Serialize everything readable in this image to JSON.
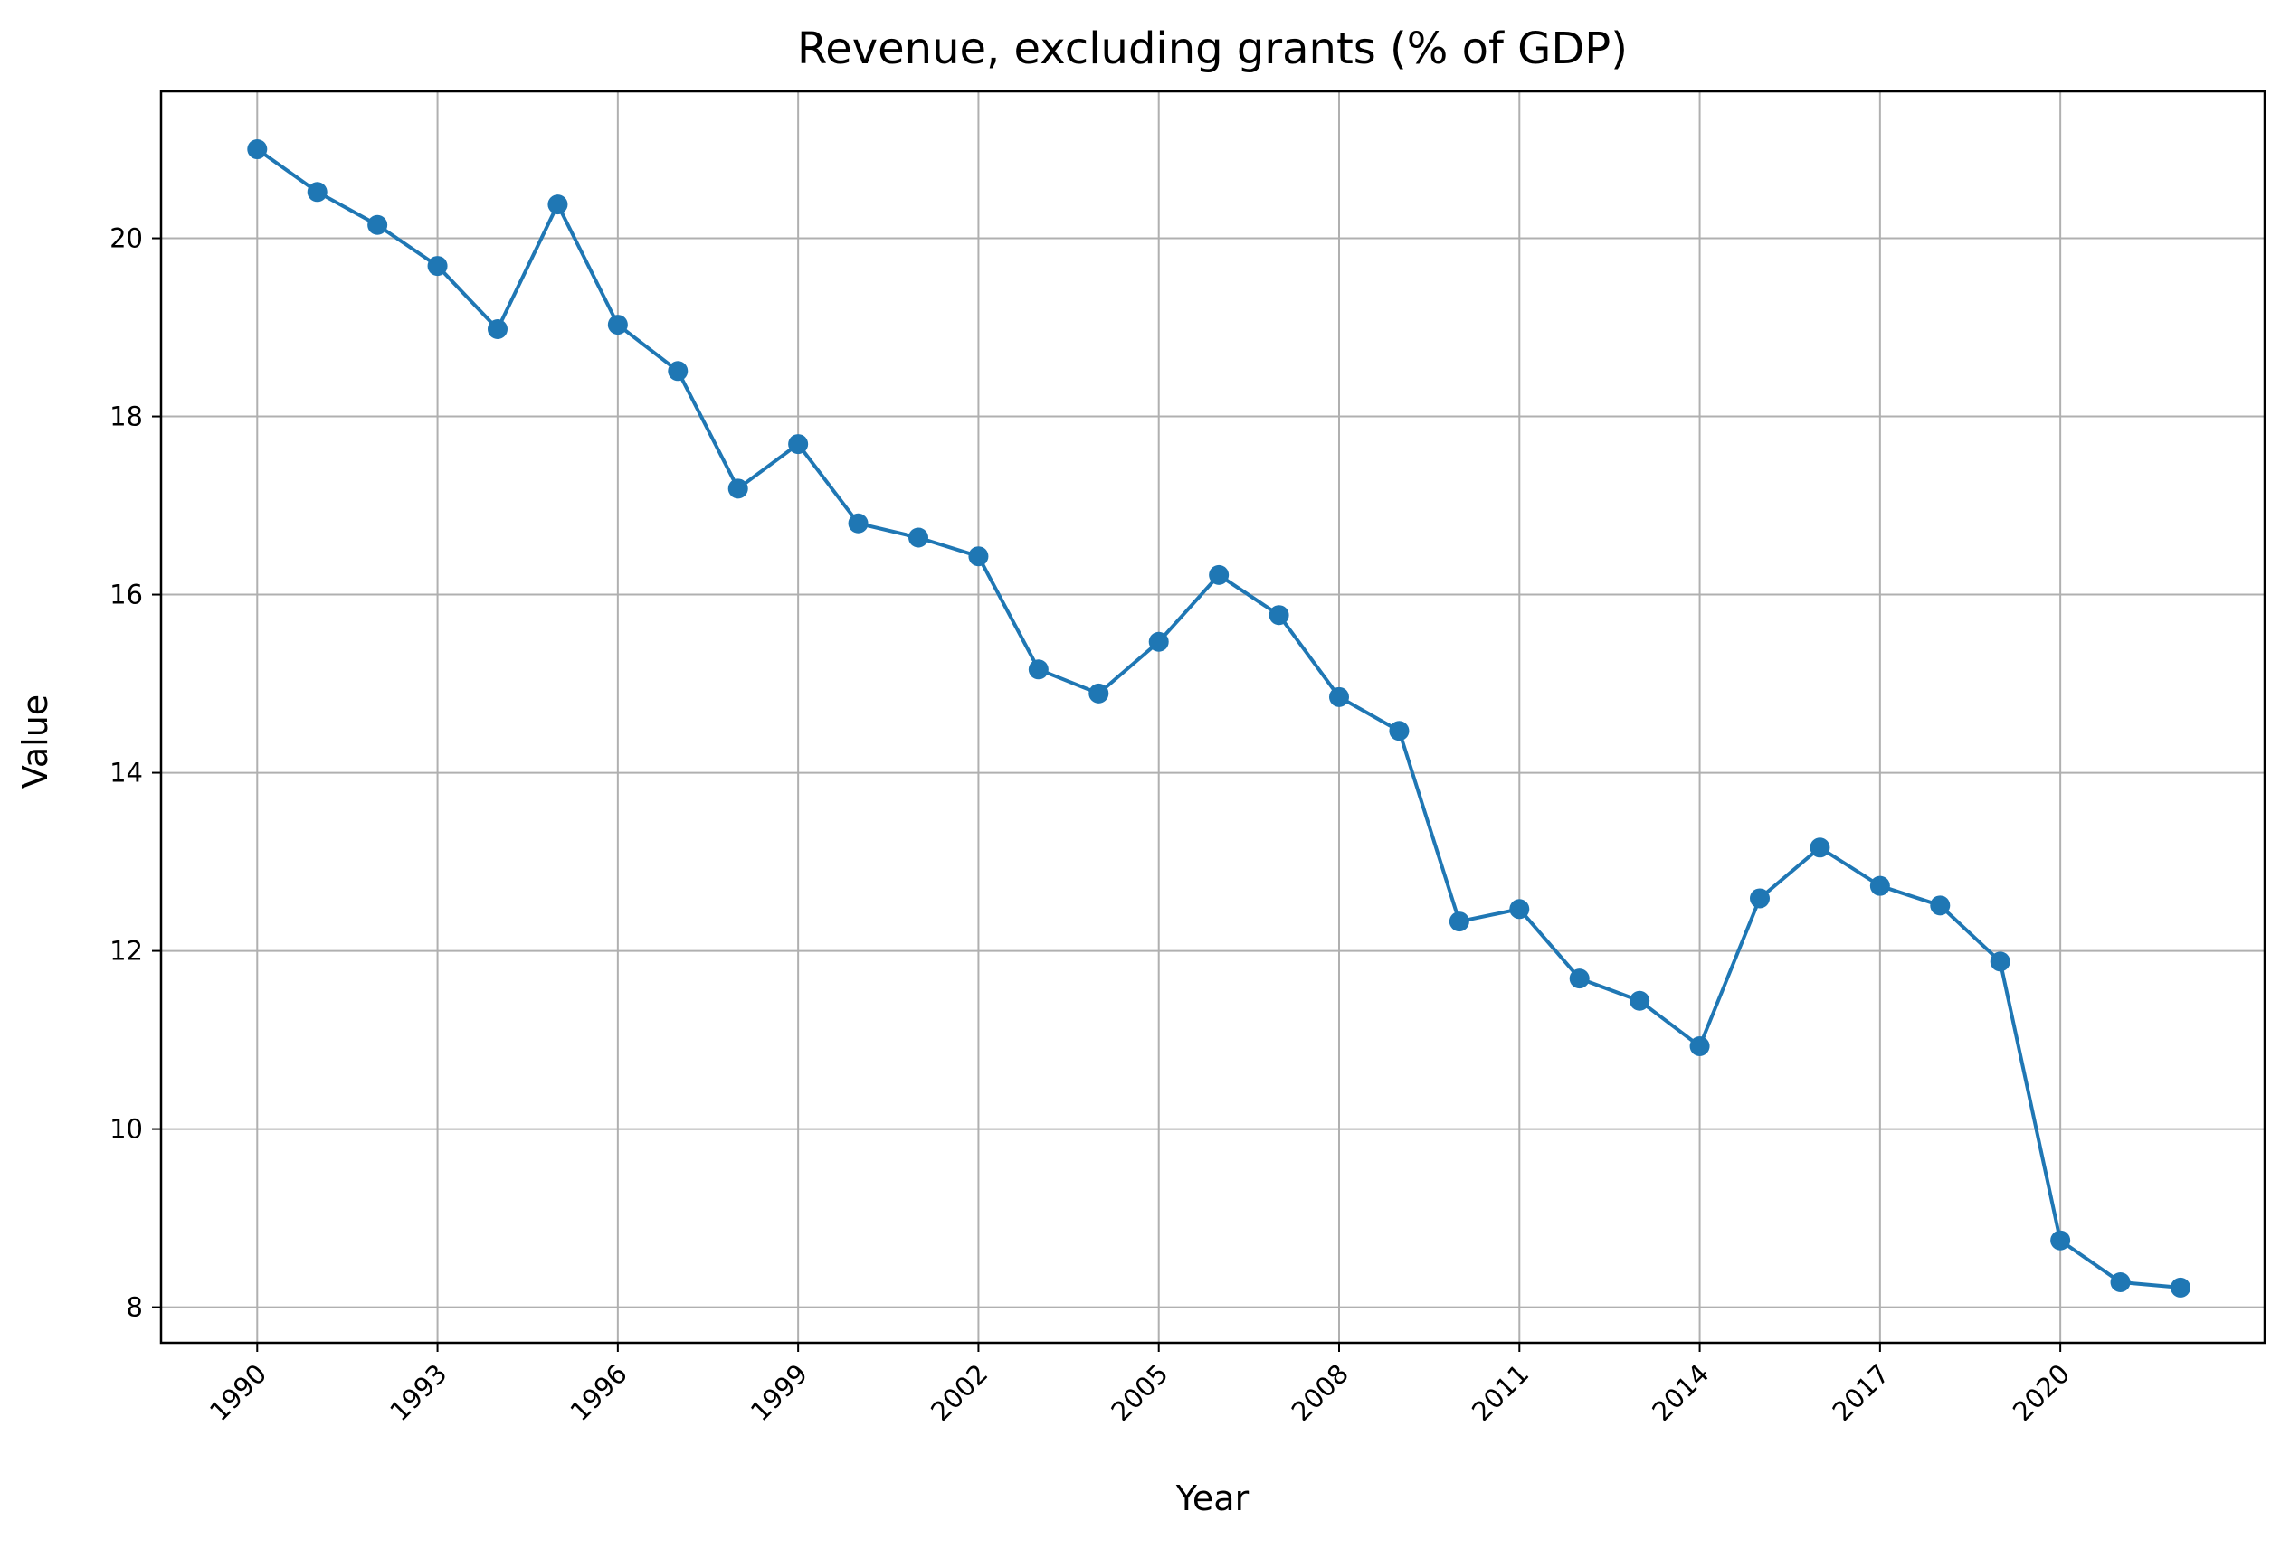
{
  "chart_data": {
    "type": "line",
    "title": "Revenue, excluding grants (% of GDP)",
    "xlabel": "Year",
    "ylabel": "Value",
    "xlim": [
      1988.4,
      2023.4
    ],
    "ylim": [
      7.6,
      21.65
    ],
    "x_ticks": [
      1990,
      1993,
      1996,
      1999,
      2002,
      2005,
      2008,
      2011,
      2014,
      2017,
      2020
    ],
    "y_ticks": [
      8,
      10,
      12,
      14,
      16,
      18,
      20
    ],
    "grid": true,
    "marker": "circle",
    "line_color": "#1f77b4",
    "series": [
      {
        "x": [
          1990,
          1991,
          1992,
          1993,
          1994,
          1995,
          1996,
          1997,
          1998,
          1999,
          2000,
          2001,
          2002,
          2003,
          2004,
          2005,
          2006,
          2007,
          2008,
          2009,
          2010,
          2011,
          2012,
          2013,
          2014,
          2015,
          2016,
          2017,
          2018,
          2019,
          2020,
          2021,
          2022
        ],
        "values": [
          21.0,
          20.52,
          20.15,
          19.69,
          18.98,
          20.38,
          19.03,
          18.51,
          17.19,
          17.69,
          16.8,
          16.64,
          16.43,
          15.16,
          14.89,
          15.47,
          16.22,
          15.77,
          14.85,
          14.47,
          12.33,
          12.47,
          11.69,
          11.44,
          10.93,
          12.59,
          13.16,
          12.73,
          12.51,
          11.88,
          8.75,
          8.28,
          8.22
        ]
      }
    ]
  }
}
